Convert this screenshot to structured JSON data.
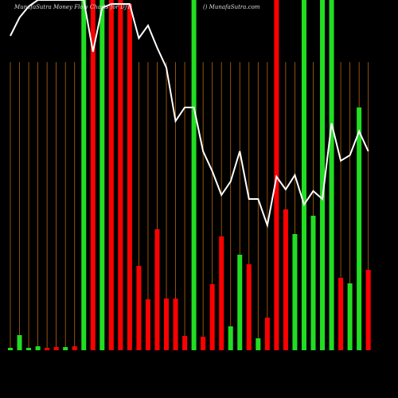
{
  "chart_data": {
    "type": "bar",
    "title": "MunafaSutra  Money Flow Charts for DJT",
    "subtitle": "() MunafaSutra.com",
    "categories": [
      null,
      null,
      null,
      null,
      null,
      null,
      null,
      null,
      null,
      null,
      null,
      null,
      null,
      null,
      null,
      null,
      null,
      null,
      null,
      null,
      null,
      null,
      null,
      null,
      null,
      null,
      null,
      null,
      null,
      null,
      null,
      null,
      null,
      null,
      null,
      null,
      null,
      null,
      null,
      null
    ],
    "values": [
      3,
      19,
      3,
      5,
      3,
      4,
      4,
      5,
      440,
      440,
      440,
      440,
      440,
      435,
      106,
      64,
      152,
      65,
      65,
      18,
      440,
      17,
      83,
      143,
      30,
      120,
      108,
      15,
      41,
      440,
      177,
      146,
      440,
      169,
      440,
      440,
      91,
      84,
      305,
      101
    ],
    "colors": [
      "#22dd22",
      "#22dd22",
      "#22dd22",
      "#22dd22",
      "#ff0000",
      "#ff0000",
      "#22dd22",
      "#ff0000",
      "#22dd22",
      "#ff0000",
      "#22dd22",
      "#ff0000",
      "#ff0000",
      "#ff0000",
      "#ff0000",
      "#ff0000",
      "#ff0000",
      "#ff0000",
      "#ff0000",
      "#ff0000",
      "#22dd22",
      "#ff0000",
      "#ff0000",
      "#ff0000",
      "#22dd22",
      "#22dd22",
      "#ff0000",
      "#22dd22",
      "#ff0000",
      "#ff0000",
      "#ff0000",
      "#22dd22",
      "#22dd22",
      "#22dd22",
      "#22dd22",
      "#22dd22",
      "#ff0000",
      "#22dd22",
      "#22dd22",
      "#ff0000"
    ],
    "line": {
      "color": "#ffffff",
      "values": [
        395,
        418,
        432,
        440,
        440,
        440,
        440,
        440,
        440,
        375,
        430,
        435,
        435,
        435,
        392,
        408,
        380,
        355,
        288,
        305,
        305,
        250,
        225,
        195,
        212,
        250,
        190,
        190,
        157,
        218,
        202,
        220,
        183,
        200,
        190,
        285,
        238,
        245,
        275,
        250
      ]
    },
    "ylim": [
      0,
      440
    ],
    "guide_color": "#b8660b"
  }
}
